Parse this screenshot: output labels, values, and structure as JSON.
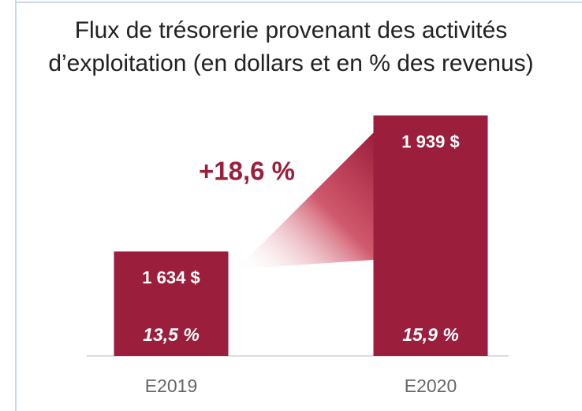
{
  "chart_data": {
    "type": "bar",
    "title": "Flux de trésorerie provenant des activités d’exploitation (en dollars et en % des revenus)",
    "categories": [
      "E2019",
      "E2020"
    ],
    "values": [
      1634,
      1939
    ],
    "value_labels": [
      "1 634 $",
      "1 939 $"
    ],
    "revenue_pct": [
      13.5,
      15.9
    ],
    "revenue_pct_labels": [
      "13,5 %",
      "15,9 %"
    ],
    "annotation": "+18,6 %",
    "color": "#9b1e3c",
    "ylim": [
      1400,
      2000
    ]
  }
}
